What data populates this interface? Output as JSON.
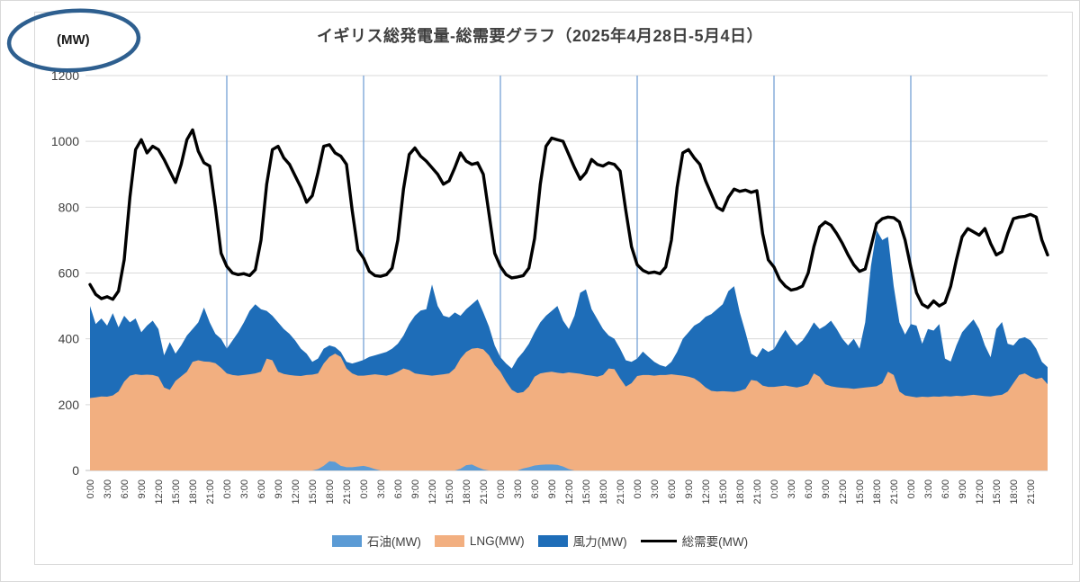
{
  "header": {
    "title": "イギリス総発電量-総需要グラフ（2025年4月28日-5月4日）"
  },
  "y_axis_unit": {
    "label": "(MW)"
  },
  "annotation": {
    "type": "hand-drawn-ellipse",
    "around": "(MW)",
    "color": "#2e5f8f"
  },
  "legend": {
    "items": [
      {
        "label": "石油(MW)",
        "color": "#5b9bd5",
        "kind": "area"
      },
      {
        "label": "LNG(MW)",
        "color": "#f2af80",
        "kind": "area"
      },
      {
        "label": "風力(MW)",
        "color": "#1e6db8",
        "kind": "area"
      },
      {
        "label": "総需要(MW)",
        "color": "#000000",
        "kind": "line"
      }
    ]
  },
  "chart_data": {
    "type": "area",
    "stacked": true,
    "line_overlay": "総需要(MW)",
    "title": "イギリス総発電量-総需要グラフ（2025年4月28日-5月4日）",
    "x_axis": {
      "start": "2025-04-28 0:00",
      "end": "2025-05-04 24:00",
      "days": 7,
      "interval_hours": 1,
      "points": 169,
      "tick_labels_per_day": [
        "0:00",
        "3:00",
        "6:00",
        "9:00",
        "12:00",
        "15:00",
        "18:00",
        "21:00"
      ]
    },
    "y_axis": {
      "min": 0,
      "max": 1200,
      "ticks": [
        0,
        200,
        400,
        600,
        800,
        1000,
        1200
      ],
      "unit": "MW"
    },
    "day_boundary_hours": [
      24,
      48,
      72,
      96,
      120,
      144
    ],
    "grid": {
      "h_color": "#d9d9d9",
      "zero_color": "#bfbfbf",
      "day_line_color": "#7fa8d9"
    },
    "series": [
      {
        "name": "石油(MW)",
        "type": "area",
        "color": "#5b9bd5",
        "values": [
          0,
          0,
          0,
          0,
          0,
          0,
          0,
          0,
          0,
          0,
          0,
          0,
          0,
          0,
          0,
          0,
          0,
          0,
          0,
          0,
          0,
          0,
          0,
          0,
          0,
          0,
          0,
          0,
          0,
          0,
          0,
          0,
          0,
          0,
          0,
          0,
          0,
          0,
          0,
          0,
          4,
          14,
          28,
          26,
          14,
          10,
          10,
          12,
          14,
          10,
          4,
          0,
          0,
          0,
          0,
          0,
          0,
          0,
          0,
          0,
          0,
          0,
          0,
          0,
          0,
          5,
          16,
          18,
          10,
          3,
          0,
          0,
          0,
          0,
          0,
          0,
          6,
          10,
          15,
          17,
          18,
          18,
          17,
          12,
          4,
          0,
          0,
          0,
          0,
          0,
          0,
          0,
          0,
          0,
          0,
          0,
          0,
          0,
          0,
          0,
          0,
          0,
          0,
          0,
          0,
          0,
          0,
          0,
          0,
          0,
          0,
          0,
          0,
          0,
          0,
          0,
          0,
          0,
          0,
          0,
          0,
          0,
          0,
          0,
          0,
          0,
          0,
          0,
          0,
          0,
          0,
          0,
          0,
          0,
          0,
          0,
          0,
          0,
          0,
          0,
          0,
          0,
          0,
          0,
          0,
          0,
          0,
          0,
          0,
          0,
          0,
          0,
          0,
          0,
          0,
          0,
          0,
          0,
          0,
          0,
          0,
          0,
          0,
          0,
          0,
          0,
          0,
          0,
          0
        ]
      },
      {
        "name": "LNG(MW)",
        "type": "area",
        "color": "#f2af80",
        "values": [
          220,
          222,
          225,
          224,
          228,
          240,
          270,
          288,
          292,
          290,
          291,
          290,
          285,
          252,
          245,
          272,
          286,
          300,
          330,
          335,
          331,
          330,
          326,
          312,
          295,
          290,
          288,
          290,
          292,
          295,
          300,
          340,
          335,
          300,
          293,
          290,
          288,
          287,
          290,
          291,
          291,
          311,
          317,
          329,
          331,
          300,
          285,
          276,
          274,
          280,
          288,
          290,
          288,
          292,
          300,
          310,
          305,
          295,
          292,
          290,
          288,
          290,
          292,
          295,
          310,
          335,
          344,
          352,
          362,
          365,
          350,
          320,
          300,
          270,
          245,
          235,
          232,
          245,
          270,
          278,
          280,
          282,
          280,
          283,
          294,
          296,
          294,
          290,
          288,
          285,
          290,
          310,
          308,
          280,
          255,
          265,
          287,
          290,
          290,
          288,
          290,
          290,
          292,
          290,
          288,
          285,
          280,
          268,
          252,
          242,
          240,
          241,
          240,
          239,
          242,
          248,
          275,
          272,
          258,
          254,
          254,
          256,
          258,
          255,
          252,
          256,
          262,
          295,
          285,
          262,
          256,
          253,
          251,
          250,
          248,
          250,
          252,
          254,
          256,
          265,
          300,
          290,
          240,
          228,
          225,
          222,
          224,
          223,
          225,
          224,
          226,
          225,
          227,
          226,
          228,
          230,
          228,
          226,
          225,
          228,
          230,
          240,
          265,
          290,
          295,
          285,
          278,
          282,
          262
        ]
      },
      {
        "name": "風力(MW)",
        "type": "area",
        "color": "#1e6db8",
        "values": [
          280,
          223,
          237,
          216,
          250,
          195,
          200,
          162,
          170,
          130,
          149,
          165,
          145,
          98,
          145,
          83,
          94,
          110,
          100,
          115,
          164,
          120,
          89,
          88,
          75,
          105,
          132,
          160,
          193,
          210,
          190,
          145,
          135,
          150,
          137,
          125,
          107,
          83,
          65,
          39,
          45,
          45,
          35,
          20,
          15,
          20,
          30,
          42,
          48,
          55,
          58,
          65,
          72,
          78,
          85,
          100,
          140,
          175,
          194,
          200,
          277,
          210,
          178,
          170,
          170,
          130,
          130,
          135,
          148,
          112,
          87,
          60,
          44,
          55,
          65,
          105,
          122,
          130,
          135,
          155,
          172,
          185,
          203,
          160,
          132,
          174,
          246,
          260,
          202,
          175,
          140,
          100,
          92,
          90,
          80,
          65,
          53,
          71,
          55,
          42,
          30,
          25,
          38,
          70,
          112,
          135,
          160,
          182,
          215,
          233,
          250,
          264,
          305,
          321,
          238,
          172,
          80,
          72,
          114,
          106,
          115,
          144,
          169,
          145,
          128,
          139,
          158,
          155,
          145,
          178,
          199,
          177,
          149,
          130,
          152,
          120,
          198,
          366,
          474,
          435,
          410,
          270,
          210,
          185,
          220,
          218,
          161,
          207,
          200,
          221,
          114,
          106,
          153,
          194,
          212,
          229,
          202,
          154,
          119,
          202,
          221,
          145,
          115,
          110,
          110,
          110,
          92,
          48,
          52
        ]
      },
      {
        "name": "総需要(MW)",
        "type": "line",
        "color": "#000000",
        "values": [
          565,
          535,
          522,
          528,
          520,
          545,
          640,
          830,
          975,
          1005,
          965,
          985,
          975,
          945,
          910,
          875,
          930,
          1005,
          1035,
          970,
          935,
          925,
          800,
          660,
          620,
          600,
          595,
          598,
          592,
          610,
          700,
          870,
          975,
          985,
          950,
          930,
          895,
          860,
          815,
          835,
          905,
          985,
          990,
          965,
          955,
          930,
          790,
          670,
          645,
          605,
          592,
          590,
          595,
          615,
          700,
          855,
          960,
          980,
          955,
          940,
          920,
          900,
          870,
          880,
          920,
          965,
          940,
          930,
          935,
          900,
          780,
          660,
          620,
          595,
          585,
          588,
          592,
          615,
          705,
          870,
          985,
          1010,
          1005,
          1000,
          960,
          920,
          885,
          905,
          945,
          930,
          925,
          935,
          930,
          910,
          790,
          680,
          625,
          608,
          600,
          603,
          598,
          618,
          700,
          860,
          965,
          975,
          950,
          930,
          880,
          840,
          800,
          790,
          830,
          855,
          848,
          852,
          845,
          850,
          720,
          640,
          618,
          580,
          560,
          548,
          552,
          560,
          600,
          680,
          740,
          755,
          745,
          720,
          690,
          655,
          625,
          605,
          612,
          680,
          750,
          765,
          770,
          768,
          755,
          700,
          618,
          540,
          505,
          495,
          515,
          500,
          510,
          560,
          640,
          710,
          735,
          725,
          715,
          735,
          690,
          655,
          665,
          720,
          765,
          770,
          772,
          778,
          770,
          700,
          655
        ]
      }
    ]
  }
}
